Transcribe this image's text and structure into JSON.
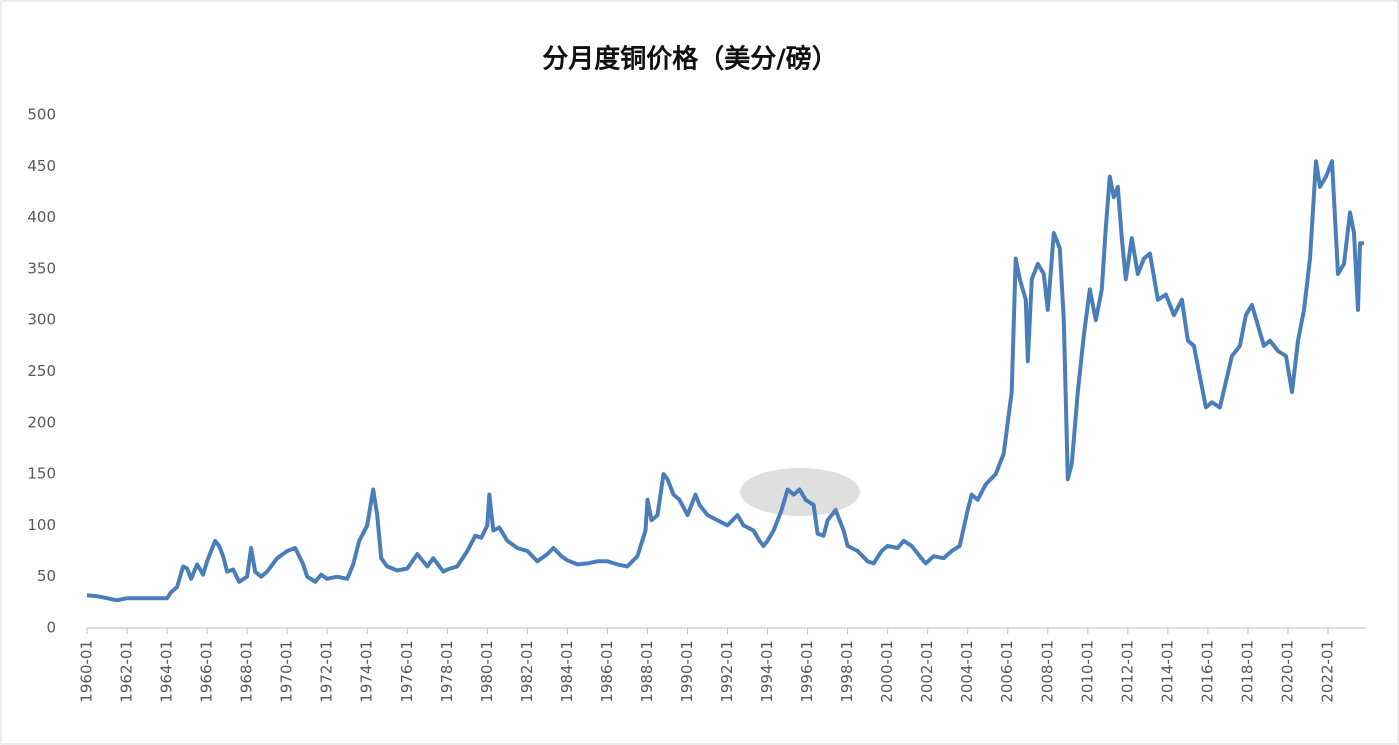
{
  "chart_data": {
    "type": "line",
    "title": "分月度铜价格（美分/磅）",
    "color": "#4a7ebb",
    "xlim": [
      1960,
      2023.9
    ],
    "xticks": [
      {
        "value": 1960,
        "label": "1960-01"
      },
      {
        "value": 1962,
        "label": "1962-01"
      },
      {
        "value": 1964,
        "label": "1964-01"
      },
      {
        "value": 1966,
        "label": "1966-01"
      },
      {
        "value": 1968,
        "label": "1968-01"
      },
      {
        "value": 1970,
        "label": "1970-01"
      },
      {
        "value": 1972,
        "label": "1972-01"
      },
      {
        "value": 1974,
        "label": "1974-01"
      },
      {
        "value": 1976,
        "label": "1976-01"
      },
      {
        "value": 1978,
        "label": "1978-01"
      },
      {
        "value": 1980,
        "label": "1980-01"
      },
      {
        "value": 1982,
        "label": "1982-01"
      },
      {
        "value": 1984,
        "label": "1984-01"
      },
      {
        "value": 1986,
        "label": "1986-01"
      },
      {
        "value": 1988,
        "label": "1988-01"
      },
      {
        "value": 1990,
        "label": "1990-01"
      },
      {
        "value": 1992,
        "label": "1992-01"
      },
      {
        "value": 1994,
        "label": "1994-01"
      },
      {
        "value": 1996,
        "label": "1996-01"
      },
      {
        "value": 1998,
        "label": "1998-01"
      },
      {
        "value": 2000,
        "label": "2000-01"
      },
      {
        "value": 2002,
        "label": "2002-01"
      },
      {
        "value": 2004,
        "label": "2004-01"
      },
      {
        "value": 2006,
        "label": "2006-01"
      },
      {
        "value": 2008,
        "label": "2008-01"
      },
      {
        "value": 2010,
        "label": "2010-01"
      },
      {
        "value": 2012,
        "label": "2012-01"
      },
      {
        "value": 2014,
        "label": "2014-01"
      },
      {
        "value": 2016,
        "label": "2016-01"
      },
      {
        "value": 2018,
        "label": "2018-01"
      },
      {
        "value": 2020,
        "label": "2020-01"
      },
      {
        "value": 2022,
        "label": "2022-01"
      }
    ],
    "ylim": [
      0,
      500
    ],
    "yticks": [
      0,
      50,
      100,
      150,
      200,
      250,
      300,
      350,
      400,
      450,
      500
    ],
    "x": [
      1960.0,
      1960.5,
      1961.0,
      1961.5,
      1962.0,
      1962.5,
      1963,
      1964,
      1964.2,
      1964.5,
      1964.8,
      1965.0,
      1965.2,
      1965.5,
      1965.8,
      1966.0,
      1966.2,
      1966.4,
      1966.6,
      1966.8,
      1967.0,
      1967.3,
      1967.6,
      1968.0,
      1968.2,
      1968.4,
      1968.7,
      1969.0,
      1969.5,
      1970.0,
      1970.4,
      1970.8,
      1971.0,
      1971.4,
      1971.7,
      1972.0,
      1972.5,
      1973.0,
      1973.3,
      1973.6,
      1974.0,
      1974.3,
      1974.5,
      1974.7,
      1975.0,
      1975.5,
      1976.0,
      1976.5,
      1977.0,
      1977.3,
      1977.8,
      1978.0,
      1978.5,
      1979.0,
      1979.4,
      1979.7,
      1980.0,
      1980.1,
      1980.3,
      1980.6,
      1981.0,
      1981.5,
      1982.0,
      1982.5,
      1983.0,
      1983.3,
      1983.7,
      1984.0,
      1984.5,
      1985.0,
      1985.5,
      1986.0,
      1986.5,
      1987.0,
      1987.5,
      1987.9,
      1988.0,
      1988.2,
      1988.5,
      1988.8,
      1989.0,
      1989.3,
      1989.6,
      1990.0,
      1990.4,
      1990.6,
      1991.0,
      1991.5,
      1992.0,
      1992.5,
      1992.8,
      1993.3,
      1993.6,
      1993.8,
      1994.0,
      1994.3,
      1994.7,
      1995.0,
      1995.3,
      1995.6,
      1995.9,
      1996.3,
      1996.5,
      1996.8,
      1997.0,
      1997.4,
      1997.8,
      1998.0,
      1998.5,
      1999.0,
      1999.3,
      1999.7,
      2000.0,
      2000.5,
      2000.8,
      2001.2,
      2001.6,
      2001.9,
      2002.3,
      2002.8,
      2003.2,
      2003.6,
      2004.0,
      2004.2,
      2004.5,
      2004.9,
      2005.4,
      2005.8,
      2006.2,
      2006.4,
      2006.6,
      2006.9,
      2007.0,
      2007.2,
      2007.5,
      2007.8,
      2008.0,
      2008.3,
      2008.6,
      2008.8,
      2009.0,
      2009.2,
      2009.5,
      2009.8,
      2010.1,
      2010.4,
      2010.7,
      2010.9,
      2011.1,
      2011.3,
      2011.5,
      2011.7,
      2011.9,
      2012.2,
      2012.5,
      2012.8,
      2013.1,
      2013.5,
      2013.9,
      2014.3,
      2014.7,
      2015.0,
      2015.3,
      2015.6,
      2015.9,
      2016.2,
      2016.6,
      2016.9,
      2017.2,
      2017.6,
      2017.9,
      2018.2,
      2018.5,
      2018.8,
      2019.1,
      2019.5,
      2019.9,
      2020.2,
      2020.5,
      2020.8,
      2021.1,
      2021.4,
      2021.6,
      2021.9,
      2022.2,
      2022.5,
      2022.8,
      2023.1,
      2023.3,
      2023.5,
      2023.6,
      2023.8
    ],
    "values": [
      32,
      31,
      29,
      27,
      29,
      29,
      29,
      29,
      35,
      40,
      60,
      58,
      48,
      62,
      52,
      65,
      75,
      85,
      80,
      70,
      55,
      57,
      45,
      50,
      78,
      55,
      50,
      55,
      68,
      75,
      78,
      62,
      50,
      45,
      52,
      48,
      50,
      48,
      62,
      85,
      100,
      135,
      110,
      68,
      60,
      56,
      58,
      72,
      60,
      68,
      55,
      57,
      60,
      75,
      90,
      88,
      100,
      130,
      95,
      98,
      85,
      78,
      75,
      65,
      72,
      78,
      70,
      66,
      62,
      63,
      65,
      65,
      62,
      60,
      70,
      95,
      125,
      105,
      110,
      150,
      145,
      130,
      125,
      110,
      130,
      120,
      110,
      105,
      100,
      110,
      100,
      95,
      85,
      80,
      85,
      95,
      115,
      135,
      130,
      135,
      125,
      120,
      92,
      90,
      105,
      115,
      95,
      80,
      75,
      65,
      63,
      75,
      80,
      78,
      85,
      80,
      70,
      63,
      70,
      68,
      75,
      80,
      115,
      130,
      125,
      140,
      150,
      170,
      230,
      360,
      340,
      320,
      260,
      340,
      355,
      345,
      310,
      385,
      370,
      300,
      145,
      160,
      230,
      285,
      330,
      300,
      330,
      390,
      440,
      420,
      430,
      380,
      340,
      380,
      345,
      360,
      365,
      320,
      325,
      305,
      320,
      280,
      275,
      245,
      215,
      220,
      215,
      240,
      265,
      275,
      305,
      315,
      295,
      275,
      280,
      270,
      265,
      230,
      280,
      310,
      360,
      455,
      430,
      440,
      455,
      345,
      355,
      405,
      385,
      310,
      375,
      375
    ]
  }
}
